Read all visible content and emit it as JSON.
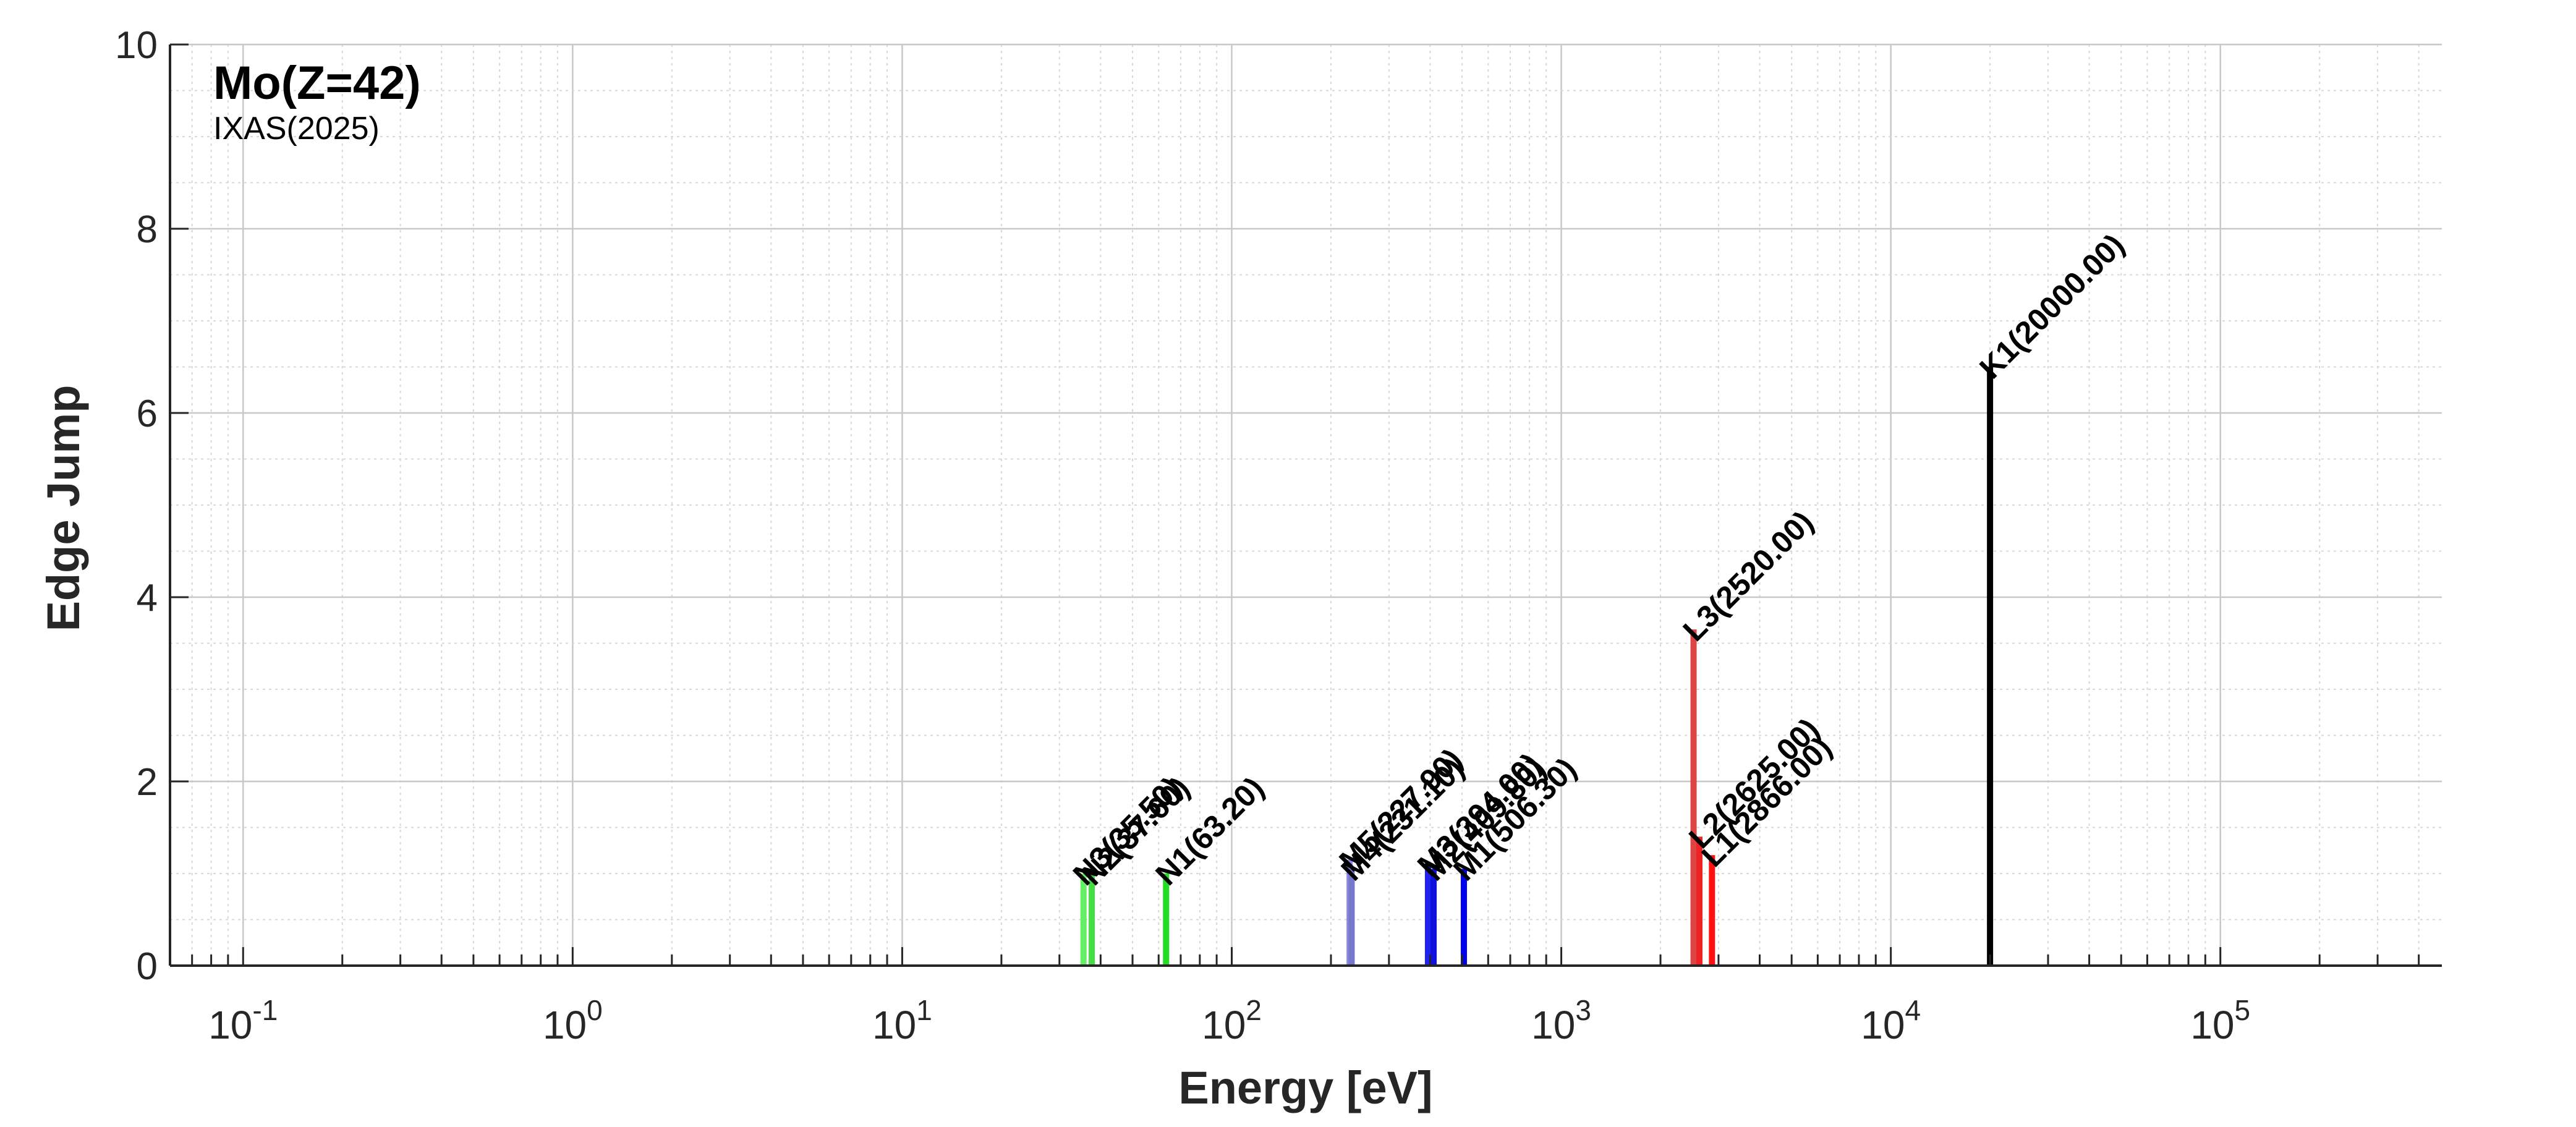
{
  "chart_data": {
    "type": "bar",
    "title": "Mo(Z=42)",
    "subtitle": "IXAS(2025)",
    "xlabel": "Energy [eV]",
    "ylabel": "Edge Jump",
    "xscale": "log",
    "xlim": [
      0.06,
      470000
    ],
    "ylim": [
      0,
      10
    ],
    "grid": true,
    "y_ticks": [
      "0",
      "2",
      "4",
      "6",
      "8",
      "10"
    ],
    "x_ticks": [
      {
        "base": "10",
        "exp": "-1"
      },
      {
        "base": "10",
        "exp": "0"
      },
      {
        "base": "10",
        "exp": "1"
      },
      {
        "base": "10",
        "exp": "2"
      },
      {
        "base": "10",
        "exp": "3"
      },
      {
        "base": "10",
        "exp": "4"
      },
      {
        "base": "10",
        "exp": "5"
      }
    ],
    "edges": [
      {
        "label": "N3(35.50)",
        "energy": 35.5,
        "jump": 1.0,
        "color": "#66ee66"
      },
      {
        "label": "N2(37.60)",
        "energy": 37.6,
        "jump": 1.0,
        "color": "#44dd44"
      },
      {
        "label": "N1(63.20)",
        "energy": 63.2,
        "jump": 1.0,
        "color": "#22dd22"
      },
      {
        "label": "M5(227.90)",
        "energy": 227.9,
        "jump": 1.15,
        "color": "#8888dd"
      },
      {
        "label": "M4(231.10)",
        "energy": 231.1,
        "jump": 1.05,
        "color": "#7777cc"
      },
      {
        "label": "M3(394.00)",
        "energy": 394.0,
        "jump": 1.1,
        "color": "#2222ee"
      },
      {
        "label": "M2(409.80)",
        "energy": 409.8,
        "jump": 1.05,
        "color": "#1111dd"
      },
      {
        "label": "M1(506.30)",
        "energy": 506.3,
        "jump": 1.05,
        "color": "#0000ee"
      },
      {
        "label": "L3(2520.00)",
        "energy": 2520.0,
        "jump": 3.65,
        "color": "#dd4444"
      },
      {
        "label": "L2(2625.00)",
        "energy": 2625.0,
        "jump": 1.4,
        "color": "#ee2222"
      },
      {
        "label": "L1(2866.00)",
        "energy": 2866.0,
        "jump": 1.2,
        "color": "#ff1111"
      },
      {
        "label": "K1(20000.00)",
        "energy": 20000.0,
        "jump": 6.5,
        "color": "#000000"
      }
    ]
  }
}
